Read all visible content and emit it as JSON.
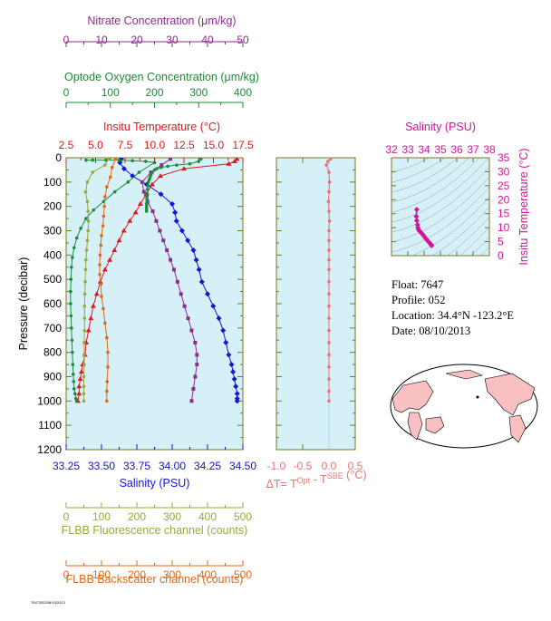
{
  "colors": {
    "panel_bg": "#d6f0f8",
    "frame": "#777722",
    "nitrate": "#8b2c8f",
    "oxygen": "#1e8a3a",
    "temperature": "#e0191e",
    "salinity": "#1414d2",
    "salinity_inset": "#d2149a",
    "fluorescence": "#9aa83a",
    "backscatter": "#dc6a1c",
    "delta_t": "#f07070",
    "land": "#f8c0c0"
  },
  "info": {
    "float": "Float:  7647",
    "profile": "Profile:  052",
    "location": "Location:  34.4°N  -123.2°E",
    "date": "Date:  08/10/2013"
  },
  "stamp": "7647/052/08/10/2013",
  "chart_data": [
    {
      "type": "line",
      "panel": "profiles",
      "ylabel": "Pressure (decibar)",
      "ylim": [
        1200,
        0
      ],
      "yticks": [
        0,
        100,
        200,
        300,
        400,
        500,
        600,
        700,
        800,
        900,
        1000,
        1100,
        1200
      ],
      "axes": [
        {
          "key": "nitrate",
          "label": "Nitrate Concentration (μm/kg)",
          "range": [
            0,
            50
          ],
          "ticks": [
            0,
            10,
            20,
            30,
            40,
            50
          ],
          "position": "top-1"
        },
        {
          "key": "oxygen",
          "label": "Optode Oxygen Concentration (μm/kg)",
          "range": [
            0,
            400
          ],
          "ticks": [
            0,
            100,
            200,
            300,
            400
          ],
          "position": "top-2"
        },
        {
          "key": "temperature",
          "label": "Insitu Temperature (°C)",
          "range": [
            2.5,
            17.5
          ],
          "ticks": [
            "2.5",
            "5.0",
            "7.5",
            "10.0",
            "12.5",
            "15.0",
            "17.5"
          ],
          "position": "top-3"
        },
        {
          "key": "salinity",
          "label": "Salinity (PSU)",
          "range": [
            33.25,
            34.5
          ],
          "ticks": [
            "33.25",
            "33.50",
            "33.75",
            "34.00",
            "34.25",
            "34.50"
          ],
          "position": "bottom-1"
        },
        {
          "key": "fluorescence",
          "label": "FLBB Fluorescence channel (counts)",
          "range": [
            0,
            500
          ],
          "ticks": [
            0,
            100,
            200,
            300,
            400,
            500
          ],
          "position": "bottom-2"
        },
        {
          "key": "backscatter",
          "label": "FLBB Backscatter channel (counts)",
          "range": [
            0,
            500
          ],
          "ticks": [
            0,
            100,
            200,
            300,
            400,
            500
          ],
          "position": "bottom-3"
        }
      ],
      "series": [
        {
          "axis": "temperature",
          "marker": "triangle",
          "x": [
            17.0,
            16.8,
            16.3,
            12.5,
            10.5,
            9.8,
            9.3,
            8.8,
            8.4,
            7.9,
            7.4,
            7.0,
            6.6,
            6.2,
            5.8,
            5.4,
            5.1,
            4.8,
            4.6,
            4.4,
            4.2,
            4.1,
            3.9,
            3.8,
            3.7,
            3.6,
            3.6,
            3.5
          ],
          "y": [
            5,
            15,
            25,
            45,
            75,
            110,
            150,
            190,
            225,
            260,
            300,
            340,
            380,
            420,
            460,
            510,
            560,
            610,
            660,
            710,
            760,
            810,
            850,
            880,
            910,
            940,
            970,
            1000
          ]
        },
        {
          "axis": "salinity",
          "marker": "diamond",
          "x": [
            33.64,
            33.63,
            33.66,
            33.72,
            33.82,
            33.92,
            34.0,
            34.02,
            34.03,
            34.07,
            34.11,
            34.15,
            34.17,
            34.19,
            34.21,
            34.25,
            34.29,
            34.33,
            34.36,
            34.38,
            34.4,
            34.42,
            34.43,
            34.44,
            34.45,
            34.46,
            34.46,
            34.46
          ],
          "y": [
            5,
            20,
            45,
            75,
            110,
            150,
            190,
            225,
            260,
            300,
            340,
            380,
            420,
            460,
            510,
            560,
            610,
            660,
            710,
            760,
            810,
            850,
            880,
            910,
            940,
            970,
            990,
            1000
          ]
        },
        {
          "axis": "nitrate",
          "marker": "square",
          "x": [
            29.5,
            27.0,
            24.0,
            21.5,
            22.0,
            23.0,
            24.5,
            25.5,
            26.5,
            27.5,
            28.5,
            29.5,
            30.5,
            31.5,
            32.5,
            33.5,
            34.5,
            35.5,
            36.5,
            37.0,
            37.0,
            36.5,
            36.0,
            35.5
          ],
          "y": [
            5,
            30,
            60,
            100,
            140,
            180,
            220,
            260,
            300,
            340,
            380,
            420,
            460,
            510,
            560,
            610,
            660,
            710,
            760,
            810,
            850,
            900,
            950,
            1000
          ]
        },
        {
          "axis": "oxygen",
          "marker": "circle",
          "x": [
            305,
            300,
            280,
            250,
            230,
            215,
            205,
            200,
            195,
            192,
            190,
            188,
            186,
            185,
            184,
            184,
            183,
            183,
            183,
            182,
            182,
            182,
            182
          ],
          "y": [
            5,
            15,
            25,
            30,
            35,
            40,
            45,
            50,
            60,
            70,
            80,
            90,
            100,
            115,
            130,
            150,
            160,
            170,
            180,
            190,
            200,
            210,
            220
          ]
        },
        {
          "axis": "oxygen",
          "marker": "circle",
          "x": [
            45,
            60,
            90,
            120,
            150,
            180,
            200
          ],
          "y": [
            10,
            10,
            10,
            10,
            12,
            15,
            20
          ]
        },
        {
          "axis": "oxygen",
          "marker": "circle",
          "x": [
            200,
            165,
            140,
            110,
            85,
            62,
            45,
            33,
            24,
            18,
            14,
            12,
            11,
            10,
            10,
            11,
            12,
            13,
            14,
            15,
            16,
            17,
            18,
            20,
            22,
            24
          ],
          "y": [
            20,
            60,
            100,
            140,
            180,
            215,
            250,
            290,
            330,
            370,
            410,
            450,
            500,
            550,
            600,
            650,
            700,
            750,
            800,
            850,
            890,
            920,
            950,
            970,
            990,
            1000
          ]
        },
        {
          "axis": "fluorescence",
          "marker": "circle",
          "x": [
            120,
            110,
            75,
            60,
            55,
            60,
            62,
            63,
            62,
            60,
            58,
            56,
            55,
            54,
            53,
            52,
            52,
            52,
            51,
            51,
            51,
            50,
            50,
            50,
            50
          ],
          "y": [
            5,
            30,
            60,
            100,
            140,
            180,
            220,
            260,
            300,
            340,
            380,
            420,
            460,
            510,
            560,
            610,
            660,
            710,
            760,
            810,
            850,
            900,
            940,
            970,
            1000
          ]
        },
        {
          "axis": "backscatter",
          "marker": "circle",
          "x": [
            140,
            130,
            125,
            115,
            110,
            108,
            106,
            104,
            100,
            98,
            96,
            95,
            95,
            98,
            100,
            105,
            110,
            115,
            118,
            118,
            116,
            115,
            115
          ],
          "y": [
            5,
            40,
            80,
            120,
            160,
            200,
            240,
            280,
            320,
            360,
            400,
            440,
            480,
            520,
            570,
            620,
            680,
            740,
            800,
            860,
            920,
            960,
            1000
          ]
        }
      ]
    },
    {
      "type": "line",
      "panel": "delta_t",
      "xlabel": "ΔT= T^Opt - T^SBE (°C)",
      "xlim": [
        -1.0,
        0.5
      ],
      "xticks": [
        "-1.0",
        "-0.5",
        "0.0",
        "0.5"
      ],
      "ylim": [
        1200,
        0
      ],
      "series": [
        {
          "name": "ΔT",
          "x": [
            0.03,
            -0.02,
            -0.05,
            0.0,
            0.01,
            0.0,
            -0.01,
            0.0,
            0.01,
            0.0,
            0.0,
            0.0,
            0.0,
            0.0,
            0.0,
            0.0,
            0.0,
            0.0,
            0.0,
            0.0,
            0.0,
            0.0,
            0.0,
            0.0,
            0.0
          ],
          "y": [
            5,
            15,
            30,
            60,
            100,
            140,
            180,
            220,
            260,
            300,
            340,
            380,
            420,
            460,
            510,
            560,
            610,
            660,
            710,
            760,
            810,
            860,
            910,
            960,
            1000
          ]
        }
      ]
    },
    {
      "type": "scatter",
      "panel": "ts_diagram",
      "xlabel": "Salinity (PSU)",
      "ylabel": "Insitu Temperature (°C)",
      "xlim": [
        32,
        38
      ],
      "ylim": [
        0,
        35
      ],
      "xticks": [
        32,
        33,
        34,
        35,
        36,
        37,
        38
      ],
      "yticks": [
        0,
        5,
        10,
        15,
        20,
        25,
        30,
        35
      ],
      "series": [
        {
          "salinity": [
            33.55,
            33.52,
            33.55,
            33.6,
            33.62,
            33.66,
            33.72,
            33.8,
            33.88,
            33.96,
            34.04,
            34.12,
            34.2,
            34.28,
            34.36,
            34.42,
            34.46
          ],
          "temperature": [
            16.5,
            14.0,
            12.5,
            11.0,
            10.0,
            9.3,
            8.8,
            8.3,
            7.8,
            7.2,
            6.6,
            6.0,
            5.4,
            4.9,
            4.4,
            4.0,
            3.6
          ]
        }
      ]
    }
  ]
}
